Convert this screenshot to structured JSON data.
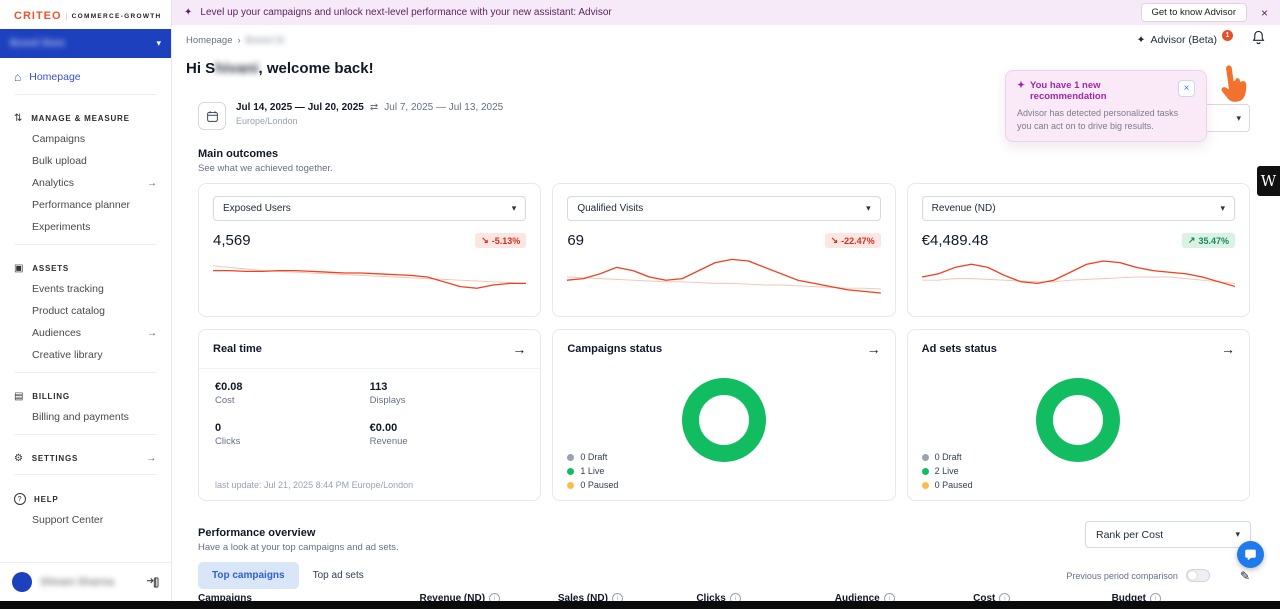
{
  "banner": {
    "text": "Level up your campaigns and unlock next-level performance with your new assistant: Advisor",
    "cta": "Get to know Advisor"
  },
  "icons": {
    "sparkle": "✦",
    "chevron_down": "▾",
    "breadcrumb_sep": "›",
    "arrow_right": "→",
    "trend_down": "↘",
    "trend_up": "↗",
    "close": "×",
    "home": "⌂",
    "manage": "⇅",
    "assets": "▣",
    "billing": "▤",
    "settings": "⚙",
    "help": "?",
    "pencil": "✎",
    "info": "i",
    "swap": "⇄",
    "w_badge": "W"
  },
  "sidebar": {
    "logo_brand": "CRITEO",
    "logo_sep": "|",
    "logo_suffix": "COMMERCE-GROWTH",
    "account_label": "Boxed Store",
    "nav_homepage": "Homepage",
    "sec_manage": "MANAGE & MEASURE",
    "items_manage": [
      "Campaigns",
      "Bulk upload",
      "Analytics",
      "Performance planner",
      "Experiments"
    ],
    "sec_assets": "ASSETS",
    "items_assets": [
      "Events tracking",
      "Product catalog",
      "Audiences",
      "Creative library"
    ],
    "sec_billing": "BILLING",
    "items_billing": [
      "Billing and payments"
    ],
    "sec_settings": "SETTINGS",
    "sec_help": "HELP",
    "items_help": [
      "Support Center"
    ],
    "user_name": "Shivani Sharma"
  },
  "header": {
    "breadcrumb_home": "Homepage",
    "breadcrumb_current": "Boxed St",
    "advisor_label": "Advisor (Beta)",
    "advisor_badge": "1",
    "greeting_prefix": "Hi S",
    "greeting_blur": "hivani",
    "greeting_suffix": ", welcome back!"
  },
  "date_picker": {
    "range": "Jul 14, 2025 — Jul 20, 2025",
    "compare_range": "Jul 7, 2025 — Jul 13, 2025",
    "timezone": "Europe/London"
  },
  "popup": {
    "title": "You have 1 new recommendation",
    "body": "Advisor has detected personalized tasks you can act on to drive big results."
  },
  "main_outcomes": {
    "title": "Main outcomes",
    "subtitle": "See what we achieved together.",
    "cards": [
      {
        "metric": "Exposed Users",
        "value": "4,569",
        "delta": "-5.13%",
        "trend": "down",
        "series": [
          19,
          19,
          18.5,
          18.5,
          19,
          19,
          18.5,
          18,
          17.5,
          17.5,
          17,
          16.5,
          16,
          15,
          12,
          9,
          8,
          10,
          11,
          11
        ],
        "compare_series": [
          22,
          21,
          20,
          19,
          18.5,
          18,
          17.5,
          17,
          16.5,
          16,
          15.5,
          15,
          14.5,
          14,
          13.5,
          13,
          12.5,
          12,
          11.5,
          11
        ]
      },
      {
        "metric": "Qualified Visits",
        "value": "69",
        "delta": "-22.47%",
        "trend": "down",
        "series": [
          13,
          14,
          17,
          21,
          19,
          15,
          13,
          14,
          19,
          24,
          26,
          25,
          21,
          17,
          13,
          11,
          9,
          7,
          6,
          5
        ],
        "compare_series": [
          15,
          14.5,
          14,
          13.5,
          13,
          12.5,
          12,
          12,
          11.5,
          11,
          11,
          10.5,
          10,
          10,
          9.5,
          9,
          8.5,
          8,
          8,
          7.5
        ]
      },
      {
        "metric": "Revenue (ND)",
        "value": "€4,489.48",
        "delta": "35.47%",
        "trend": "up",
        "series": [
          15,
          17,
          21,
          23,
          21,
          16,
          12,
          11,
          13,
          18,
          23,
          25,
          24,
          21,
          19,
          18,
          17,
          15,
          12,
          9
        ],
        "compare_series": [
          13,
          13,
          14,
          14,
          13.5,
          13,
          12.5,
          12,
          12,
          13,
          13.5,
          14,
          14.5,
          15,
          15,
          15,
          14,
          13,
          12,
          11
        ]
      }
    ]
  },
  "realtime": {
    "title": "Real time",
    "stats": [
      {
        "value": "€0.08",
        "label": "Cost"
      },
      {
        "value": "113",
        "label": "Displays"
      },
      {
        "value": "0",
        "label": "Clicks"
      },
      {
        "value": "€0.00",
        "label": "Revenue"
      }
    ],
    "last_update": "last update: Jul 21, 2025 8:44 PM Europe/London"
  },
  "status_cards": [
    {
      "title": "Campaigns status",
      "legend": [
        {
          "label": "0 Draft",
          "color": "#98A2B3"
        },
        {
          "label": "1 Live",
          "color": "#12BD62"
        },
        {
          "label": "0 Paused",
          "color": "#F7BE4F"
        }
      ]
    },
    {
      "title": "Ad sets status",
      "legend": [
        {
          "label": "0 Draft",
          "color": "#98A2B3"
        },
        {
          "label": "2 Live",
          "color": "#12BD62"
        },
        {
          "label": "0 Paused",
          "color": "#F7BE4F"
        }
      ]
    }
  ],
  "performance": {
    "title": "Performance overview",
    "subtitle": "Have a look at your top campaigns and ad sets.",
    "rank_select": "Rank per Cost",
    "tabs": [
      "Top campaigns",
      "Top ad sets"
    ],
    "comparison_label": "Previous period comparison",
    "columns": [
      "Campaigns",
      "Revenue (ND)",
      "Sales (ND)",
      "Clicks",
      "Audience",
      "Cost",
      "Budget"
    ]
  },
  "colors": {
    "spark_main": "#F0401E",
    "spark_compare": "#F6C3B4",
    "donut_green": "#12BD62",
    "banner_bg": "#F6EAF8",
    "account_blue": "#1D41BE",
    "badge_red": "#EB4E27"
  }
}
